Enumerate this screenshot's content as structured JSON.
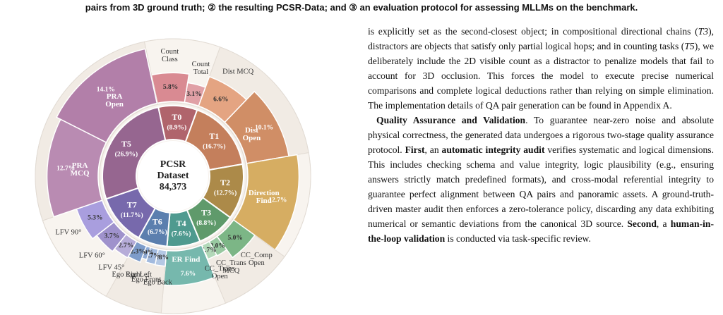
{
  "caption": "pairs from 3D ground truth; ② the resulting PCSR-Data; and ③ an evaluation protocol for assessing MLLMs on the benchmark.",
  "chart_data": {
    "type": "sunburst",
    "center_lines": [
      "PCSR",
      "Dataset",
      "84,373"
    ],
    "categories": [
      "T0",
      "T1",
      "T2",
      "T3",
      "T4",
      "T6",
      "T7",
      "T5"
    ],
    "values": [
      8.9,
      16.7,
      12.7,
      8.8,
      7.6,
      6.7,
      11.7,
      26.9
    ],
    "value_labels": [
      "(8.9%)",
      "(16.7%)",
      "(12.7%)",
      "(8.8%)",
      "(7.6%)",
      "(6.7%)",
      "(11.7%)",
      "(26.9%)"
    ],
    "colors": [
      "#b0646c",
      "#c47f5c",
      "#ac8a49",
      "#5f9a6b",
      "#4f9a8f",
      "#5b7fae",
      "#7769ac",
      "#966690"
    ],
    "children": [
      {
        "names": [
          "Count Class",
          "Count Total"
        ],
        "values": [
          5.8,
          3.1
        ],
        "value_labels": [
          "5.8%",
          "3.1%"
        ],
        "colors": [
          "#d98a92",
          "#e0a0a6"
        ]
      },
      {
        "names": [
          "Dist MCQ",
          "Dist Open"
        ],
        "values": [
          6.6,
          10.1
        ],
        "value_labels": [
          "6.6%",
          "10.1%"
        ],
        "colors": [
          "#e4a482",
          "#d08e66"
        ]
      },
      {
        "names": [
          "Direction Find"
        ],
        "values": [
          12.7
        ],
        "value_labels": [
          "12.7%"
        ],
        "colors": [
          "#d6ad62"
        ]
      },
      {
        "names": [
          "CC_Comp Open",
          "CC_Trans MCQ",
          "CC_Trans Open"
        ],
        "values": [
          5.0,
          2.0,
          1.7
        ],
        "value_labels": [
          "5.0%",
          "2.0%",
          "1.7%"
        ],
        "colors": [
          "#7cb686",
          "#98c8a0",
          "#b2d8b8"
        ]
      },
      {
        "names": [
          "ER Find"
        ],
        "values": [
          7.6
        ],
        "value_labels": [
          "7.6%"
        ],
        "colors": [
          "#76b8ad"
        ]
      },
      {
        "names": [
          "Ego Back",
          "Ego Front",
          "Ego Left",
          "Ego Right"
        ],
        "values": [
          1.8,
          1.7,
          0.9,
          2.3
        ],
        "value_labels": [
          "1.8%",
          "1.7%",
          "0.9%",
          "2.3%"
        ],
        "colors": [
          "#b4c8e4",
          "#a2bade",
          "#8eaad4",
          "#7d9cca"
        ]
      },
      {
        "names": [
          "LFV 45°",
          "LFV 60°",
          "LFV 90°"
        ],
        "values": [
          2.7,
          3.7,
          5.3
        ],
        "value_labels": [
          "2.7%",
          "3.7%",
          "5.3%"
        ],
        "colors": [
          "#b6acd8",
          "#9f92cc",
          "#a99ede"
        ]
      },
      {
        "names": [
          "PRA MCQ",
          "PRA Open"
        ],
        "values": [
          12.7,
          14.1
        ],
        "value_labels": [
          "12.7%",
          "14.1%"
        ],
        "colors": [
          "#b98bb2",
          "#b27fa9"
        ]
      }
    ]
  },
  "text": {
    "paragraphs": [
      {
        "runs": [
          {
            "text": "is explicitly set as the second-closest object; in compositional directional chains (",
            "style": "normal"
          },
          {
            "text": "T3",
            "style": "italic"
          },
          {
            "text": "), distractors are objects that satisfy only partial logical hops; and in counting tasks (",
            "style": "normal"
          },
          {
            "text": "T5",
            "style": "italic"
          },
          {
            "text": "), we deliberately include the 2D visible count as a distractor to penalize models that fail to account for 3D occlusion. This forces the model to execute precise numerical comparisons and complete logical deductions rather than relying on simple elimination. The implementation details of QA pair generation can be found in Appendix A.",
            "style": "normal"
          }
        ]
      },
      {
        "runs": [
          {
            "text": "Quality Assurance and Validation",
            "style": "bold"
          },
          {
            "text": ". To guarantee near-zero noise and absolute physical correctness, the generated data undergoes a rigorous two-stage quality assurance protocol. ",
            "style": "normal"
          },
          {
            "text": "First",
            "style": "bold"
          },
          {
            "text": ", an ",
            "style": "normal"
          },
          {
            "text": "automatic integrity audit",
            "style": "bold"
          },
          {
            "text": " verifies systematic and logical dimensions. This includes checking schema and value integrity, logic plausibility (e.g., ensuring answers strictly match predefined formats), and cross-modal referential integrity to guarantee perfect alignment between QA pairs and panoramic assets. A ground-truth-driven master audit then enforces a zero-tolerance policy, discarding any data exhibiting numerical or semantic deviations from the canonical 3D source. ",
            "style": "normal"
          },
          {
            "text": "Second",
            "style": "bold"
          },
          {
            "text": ", a ",
            "style": "normal"
          },
          {
            "text": "human-in-the-loop validation",
            "style": "bold"
          },
          {
            "text": " is conducted via task-specific review.",
            "style": "normal"
          }
        ]
      }
    ]
  }
}
